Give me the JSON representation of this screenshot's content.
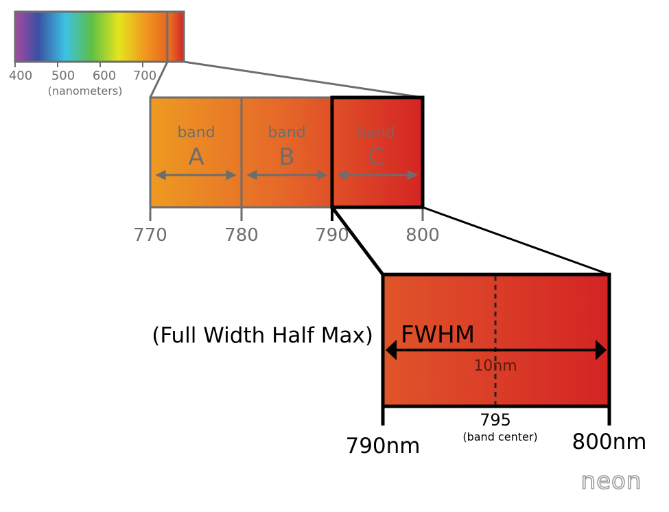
{
  "spectrum": {
    "ticks": [
      "400",
      "500",
      "600",
      "700"
    ],
    "unit_label": "(nanometers)"
  },
  "bands": {
    "axis_ticks": [
      "770",
      "780",
      "790",
      "800"
    ],
    "items": [
      {
        "word": "band",
        "letter": "A"
      },
      {
        "word": "band",
        "letter": "B"
      },
      {
        "word": "band",
        "letter": "C"
      }
    ]
  },
  "detail": {
    "fwhm_label": "FWHM",
    "fwhm_full": "(Full Width Half Max)",
    "width_label": "10nm",
    "center_value": "795",
    "center_label": "(band center)",
    "left_label": "790nm",
    "right_label": "800nm"
  },
  "logo": "neon",
  "colors": {
    "orange": "#ee9a22",
    "red": "#d42424",
    "outline_gray": "#6d6d6d",
    "outline_black": "#000000"
  }
}
